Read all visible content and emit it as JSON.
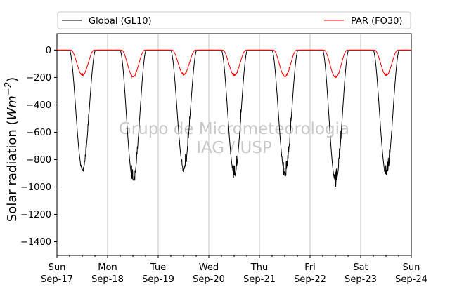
{
  "chart_data": {
    "type": "line",
    "ylabel": "Solar radiation (W m−2)",
    "ylabel_parts": [
      "Solar radiation (",
      "Wm",
      "−2",
      ")"
    ],
    "ylim": [
      -1500,
      120
    ],
    "yticks": [
      0,
      -200,
      -400,
      -600,
      -800,
      -1000,
      -1200,
      -1400
    ],
    "xlim": [
      "2017-09-17",
      "2017-09-24"
    ],
    "xticks": [
      {
        "day": "Sun",
        "date": "Sep-17"
      },
      {
        "day": "Mon",
        "date": "Sep-18"
      },
      {
        "day": "Tue",
        "date": "Sep-19"
      },
      {
        "day": "Wed",
        "date": "Sep-20"
      },
      {
        "day": "Thu",
        "date": "Sep-21"
      },
      {
        "day": "Fri",
        "date": "Sep-22"
      },
      {
        "day": "Sat",
        "date": "Sep-23"
      },
      {
        "day": "Sun",
        "date": "Sep-24"
      }
    ],
    "grid": "vertical lines at day boundaries",
    "legend_position": "top, above plot",
    "watermark": [
      "Grupo de Micrometeorologia",
      "IAG / USP"
    ],
    "series": [
      {
        "name": "Global (GL10)",
        "color": "#000000",
        "daily_peaks": [
          {
            "date": "2017-09-17",
            "min": -875
          },
          {
            "date": "2017-09-18",
            "min": -950
          },
          {
            "date": "2017-09-19",
            "min": -870
          },
          {
            "date": "2017-09-20",
            "min": -910
          },
          {
            "date": "2017-09-21",
            "min": -900
          },
          {
            "date": "2017-09-22",
            "min": -960
          },
          {
            "date": "2017-09-23",
            "min": -910
          }
        ]
      },
      {
        "name": "PAR (FO30)",
        "color": "#ff0000",
        "daily_peaks": [
          {
            "date": "2017-09-17",
            "min": -185
          },
          {
            "date": "2017-09-18",
            "min": -195
          },
          {
            "date": "2017-09-19",
            "min": -180
          },
          {
            "date": "2017-09-20",
            "min": -185
          },
          {
            "date": "2017-09-21",
            "min": -195
          },
          {
            "date": "2017-09-22",
            "min": -200
          },
          {
            "date": "2017-09-23",
            "min": -185
          }
        ]
      }
    ]
  }
}
